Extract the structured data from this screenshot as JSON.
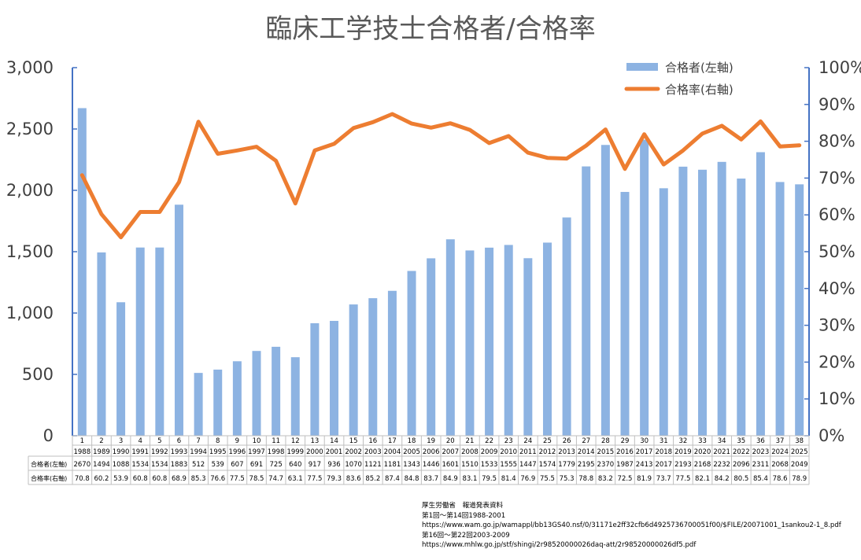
{
  "chart_data": {
    "type": "bar",
    "title": "臨床工学技士合格者/合格率",
    "categories": [
      "1",
      "2",
      "3",
      "4",
      "5",
      "6",
      "7",
      "8",
      "9",
      "10",
      "11",
      "12",
      "13",
      "14",
      "15",
      "16",
      "17",
      "18",
      "19",
      "20",
      "21",
      "22",
      "23",
      "24",
      "25",
      "26",
      "27",
      "28",
      "29",
      "30",
      "31",
      "32",
      "33",
      "34",
      "35",
      "36",
      "37",
      "38"
    ],
    "years": [
      "1988",
      "1989",
      "1990",
      "1991",
      "1992",
      "1993",
      "1994",
      "1995",
      "1996",
      "1997",
      "1998",
      "1999",
      "2000",
      "2001",
      "2002",
      "2003",
      "2004",
      "2005",
      "2006",
      "2007",
      "2008",
      "2009",
      "2010",
      "2011",
      "2012",
      "2013",
      "2014",
      "2015",
      "2016",
      "2017",
      "2018",
      "2019",
      "2020",
      "2021",
      "2022",
      "2023",
      "2024",
      "2025"
    ],
    "series": [
      {
        "name": "合格者(左軸)",
        "table_label": "合格者(左軸)",
        "type": "bar",
        "axis": "left",
        "color": "#8db3e2",
        "values": [
          2670,
          1494,
          1088,
          1534,
          1534,
          1883,
          512,
          539,
          607,
          691,
          725,
          640,
          917,
          936,
          1070,
          1121,
          1181,
          1343,
          1446,
          1601,
          1510,
          1533,
          1555,
          1447,
          1574,
          1779,
          2195,
          2370,
          1987,
          2413,
          2017,
          2193,
          2168,
          2232,
          2096,
          2311,
          2068,
          2049
        ]
      },
      {
        "name": "合格率(右軸)",
        "table_label": "合格率(右軸)",
        "type": "line",
        "axis": "right",
        "color": "#ed7d31",
        "values": [
          70.8,
          60.2,
          53.9,
          60.8,
          60.8,
          68.9,
          85.3,
          76.6,
          77.5,
          78.5,
          74.7,
          63.1,
          77.5,
          79.3,
          83.6,
          85.2,
          87.4,
          84.8,
          83.7,
          84.9,
          83.1,
          79.5,
          81.4,
          76.9,
          75.5,
          75.3,
          78.8,
          83.2,
          72.5,
          81.9,
          73.7,
          77.5,
          82.1,
          84.2,
          80.5,
          85.4,
          78.6,
          78.9
        ]
      }
    ],
    "y_left": {
      "range": [
        0,
        3000
      ],
      "ticks": [
        "0",
        "500",
        "1,000",
        "1,500",
        "2,000",
        "2,500",
        "3,000"
      ]
    },
    "y_right": {
      "range": [
        0,
        100
      ],
      "ticks": [
        "0%",
        "10%",
        "20%",
        "30%",
        "40%",
        "50%",
        "60%",
        "70%",
        "80%",
        "90%",
        "100%"
      ]
    },
    "legend_position": "top-right",
    "grid": false,
    "axis_color": "#4472c4"
  },
  "sources": [
    "厚生労働省　報道発表資料",
    "第1回～第14回1988-2001",
    "https://www.wam.go.jp/wamappl/bb13GS40.nsf/0/31171e2ff32cfb6d4925736700051f00/$FILE/20071001_1sankou2-1_8.pdf",
    "第16回～第22回2003-2009",
    "https://www.mhlw.go.jp/stf/shingi/2r98520000026daq-att/2r98520000026df5.pdf"
  ]
}
